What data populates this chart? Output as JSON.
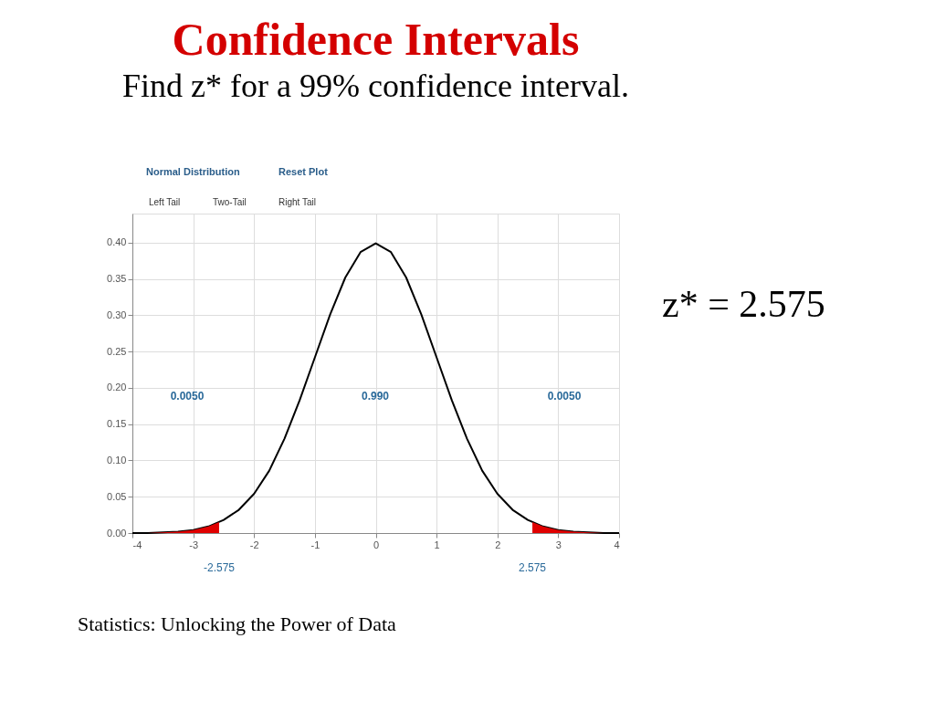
{
  "chart_data": {
    "type": "line",
    "title": "Confidence Intervals",
    "subtitle": "Find z* for a 99% confidence interval.",
    "x": [
      -4,
      -3.75,
      -3.5,
      -3.25,
      -3,
      -2.75,
      -2.5,
      -2.25,
      -2,
      -1.75,
      -1.5,
      -1.25,
      -1,
      -0.75,
      -0.5,
      -0.25,
      0,
      0.25,
      0.5,
      0.75,
      1,
      1.25,
      1.5,
      1.75,
      2,
      2.25,
      2.5,
      2.75,
      3,
      3.25,
      3.5,
      3.75,
      4
    ],
    "series": [
      {
        "color": "#000000",
        "values": [
          0.0,
          0.0,
          0.001,
          0.002,
          0.004,
          0.009,
          0.018,
          0.032,
          0.054,
          0.086,
          0.13,
          0.183,
          0.242,
          0.301,
          0.352,
          0.387,
          0.399,
          0.387,
          0.352,
          0.301,
          0.242,
          0.183,
          0.13,
          0.086,
          0.054,
          0.032,
          0.018,
          0.009,
          0.004,
          0.002,
          0.001,
          0.0,
          0.0
        ]
      },
      {
        "type": "area",
        "color": "#e00000",
        "x": [
          -4,
          -3.75,
          -3.5,
          -3.25,
          -3,
          -2.75,
          -2.575
        ],
        "values": [
          0.0,
          0.0,
          0.001,
          0.002,
          0.004,
          0.009,
          0.015
        ]
      },
      {
        "type": "area",
        "color": "#e00000",
        "x": [
          2.575,
          2.75,
          3,
          3.25,
          3.5,
          3.75,
          4
        ],
        "values": [
          0.015,
          0.009,
          0.004,
          0.002,
          0.001,
          0.0,
          0.0
        ]
      }
    ],
    "xlim": [
      -4,
      4
    ],
    "ylim": [
      0,
      0.44
    ],
    "xticks": [
      -4,
      -3,
      -2,
      -1,
      0,
      1,
      2,
      3,
      4
    ],
    "yticks": [
      {
        "value": 0,
        "label": "0.00"
      },
      {
        "value": 0.05,
        "label": "0.05"
      },
      {
        "value": 0.1,
        "label": "0.10"
      },
      {
        "value": 0.15,
        "label": "0.15"
      },
      {
        "value": 0.2,
        "label": "0.20"
      },
      {
        "value": 0.25,
        "label": "0.25"
      },
      {
        "value": 0.3,
        "label": "0.30"
      },
      {
        "value": 0.35,
        "label": "0.35"
      },
      {
        "value": 0.4,
        "label": "0.40"
      }
    ],
    "grid": true,
    "annotations": [
      "Normal Distribution",
      "Reset Plot",
      "Left Tail",
      "Two-Tail",
      "Right Tail",
      "z* = 2.575",
      "Statistics: Unlocking the Power of Data",
      "0.0050",
      "0.990",
      "0.0050",
      "-2.575",
      "2.575"
    ]
  }
}
